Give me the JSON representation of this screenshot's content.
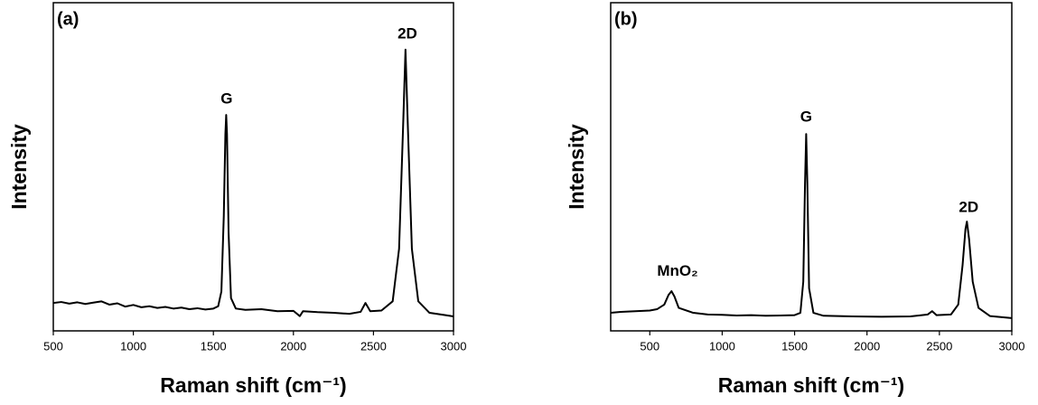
{
  "chart_data": [
    {
      "type": "line",
      "panel_label": "(a)",
      "x_label": "Raman shift (cm⁻¹)",
      "y_label": "Intensity",
      "xlim": [
        500,
        3000
      ],
      "xticks": [
        500,
        1000,
        1500,
        2000,
        2500,
        3000
      ],
      "ylim": [
        0,
        1
      ],
      "series": [
        {
          "color": "#000000",
          "x": [
            500,
            550,
            600,
            650,
            700,
            750,
            800,
            850,
            900,
            950,
            1000,
            1050,
            1100,
            1150,
            1200,
            1250,
            1300,
            1350,
            1400,
            1450,
            1500,
            1530,
            1550,
            1565,
            1575,
            1580,
            1585,
            1595,
            1610,
            1640,
            1700,
            1800,
            1900,
            2000,
            2040,
            2060,
            2150,
            2250,
            2350,
            2420,
            2450,
            2480,
            2550,
            2620,
            2660,
            2685,
            2700,
            2715,
            2740,
            2780,
            2850,
            2950,
            3000
          ],
          "values": [
            0.085,
            0.088,
            0.083,
            0.087,
            0.082,
            0.086,
            0.09,
            0.08,
            0.084,
            0.074,
            0.079,
            0.072,
            0.075,
            0.07,
            0.073,
            0.068,
            0.071,
            0.066,
            0.069,
            0.065,
            0.068,
            0.075,
            0.12,
            0.35,
            0.6,
            0.658,
            0.6,
            0.3,
            0.1,
            0.068,
            0.064,
            0.066,
            0.06,
            0.061,
            0.045,
            0.06,
            0.057,
            0.055,
            0.052,
            0.058,
            0.085,
            0.06,
            0.062,
            0.09,
            0.25,
            0.62,
            0.857,
            0.62,
            0.25,
            0.09,
            0.055,
            0.048,
            0.044
          ]
        }
      ],
      "annotations": [
        {
          "text": "G",
          "x": 1583,
          "y": 0.705
        },
        {
          "text": "2D",
          "x": 2712,
          "y": 0.904
        }
      ]
    },
    {
      "type": "line",
      "panel_label": "(b)",
      "x_label": "Raman shift (cm⁻¹)",
      "y_label": "Intensity",
      "xlim": [
        230,
        3000
      ],
      "xticks": [
        500,
        1000,
        1500,
        2000,
        2500,
        3000
      ],
      "ylim": [
        0,
        1
      ],
      "series": [
        {
          "color": "#000000",
          "x": [
            230,
            300,
            400,
            500,
            550,
            600,
            630,
            650,
            670,
            700,
            800,
            900,
            1000,
            1100,
            1200,
            1300,
            1400,
            1500,
            1540,
            1560,
            1572,
            1580,
            1588,
            1600,
            1630,
            1700,
            1900,
            2100,
            2300,
            2420,
            2450,
            2480,
            2580,
            2630,
            2660,
            2680,
            2690,
            2705,
            2730,
            2770,
            2850,
            3000
          ],
          "values": [
            0.055,
            0.058,
            0.06,
            0.062,
            0.066,
            0.08,
            0.11,
            0.121,
            0.105,
            0.07,
            0.055,
            0.05,
            0.049,
            0.047,
            0.048,
            0.046,
            0.047,
            0.048,
            0.055,
            0.15,
            0.45,
            0.6,
            0.45,
            0.13,
            0.055,
            0.046,
            0.044,
            0.043,
            0.044,
            0.05,
            0.06,
            0.048,
            0.05,
            0.08,
            0.2,
            0.31,
            0.333,
            0.28,
            0.15,
            0.07,
            0.045,
            0.039
          ]
        }
      ],
      "annotations": [
        {
          "text": "MnO₂",
          "x": 692,
          "y": 0.18
        },
        {
          "text": "G",
          "x": 1580,
          "y": 0.65
        },
        {
          "text": "2D",
          "x": 2702,
          "y": 0.375
        }
      ]
    }
  ]
}
